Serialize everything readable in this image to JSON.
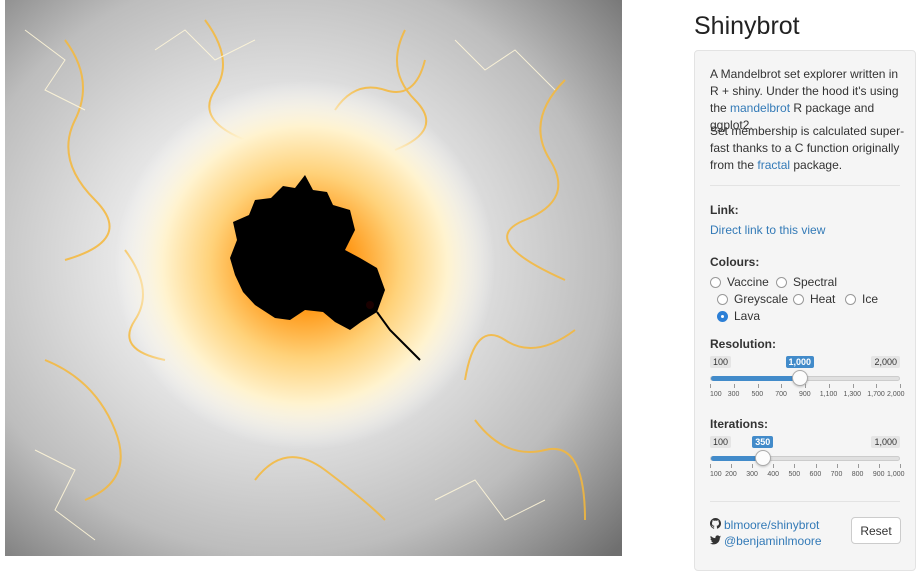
{
  "title": "Shinybrot",
  "about": {
    "p1_pre": "A Mandelbrot set explorer written in R + shiny. Under the hood it's using the ",
    "p1_link": "mandelbrot",
    "p1_post": " R package and ggplot2.",
    "p2_pre": "Set membership is calculated super-fast thanks to a C function originally from the ",
    "p2_link": "fractal",
    "p2_post": " package."
  },
  "link": {
    "label": "Link:",
    "text": "Direct link to this view"
  },
  "colours": {
    "label": "Colours:",
    "options": [
      "Vaccine",
      "Spectral",
      "Greyscale",
      "Heat",
      "Ice",
      "Lava"
    ],
    "selected": "Lava"
  },
  "resolution": {
    "label": "Resolution:",
    "min": "100",
    "max": "2,000",
    "value": "1,000",
    "fraction": 0.4737,
    "ticks": [
      "100",
      "300",
      "500",
      "700",
      "900",
      "1,100",
      "1,300",
      "1,700",
      "2,000"
    ]
  },
  "iterations": {
    "label": "Iterations:",
    "min": "100",
    "max": "1,000",
    "value": "350",
    "fraction": 0.2778,
    "ticks": [
      "100",
      "200",
      "300",
      "400",
      "500",
      "600",
      "700",
      "800",
      "900",
      "1,000"
    ]
  },
  "footer": {
    "github": "blmoore/shinybrot",
    "twitter": "@benjaminlmoore",
    "reset": "Reset"
  },
  "icons": [
    "github-icon",
    "twitter-icon"
  ],
  "colors": {
    "accent": "#428bca",
    "link": "#337ab7"
  }
}
